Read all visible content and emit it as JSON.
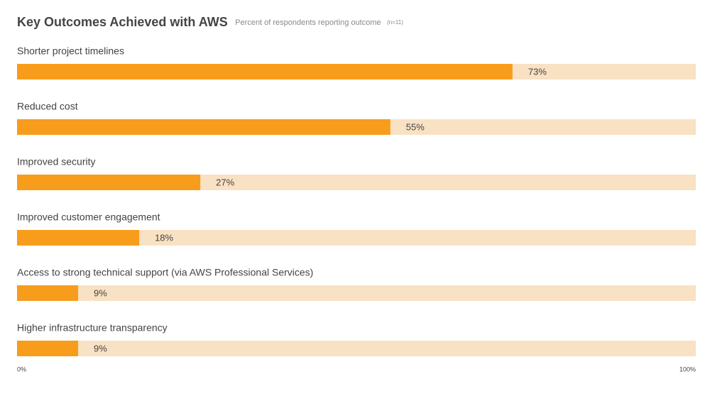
{
  "chart_data": {
    "type": "bar",
    "orientation": "horizontal",
    "title": "Key Outcomes Achieved with AWS",
    "subtitle": "Percent of respondents reporting outcome",
    "note": "(n=11)",
    "categories": [
      "Shorter project timelines",
      "Reduced cost",
      "Improved security",
      "Improved customer engagement",
      "Access to strong technical support (via AWS Professional Services)",
      "Higher infrastructure transparency"
    ],
    "values": [
      73,
      55,
      27,
      18,
      9,
      9
    ],
    "value_labels": [
      "73%",
      "55%",
      "27%",
      "18%",
      "9%",
      "9%"
    ],
    "color": "#f89c1c",
    "track_color": "#f9e1c3",
    "xlim": [
      0,
      100
    ],
    "xticks": [
      {
        "value": 0,
        "label": "0%"
      },
      {
        "value": 100,
        "label": "100%"
      }
    ]
  }
}
